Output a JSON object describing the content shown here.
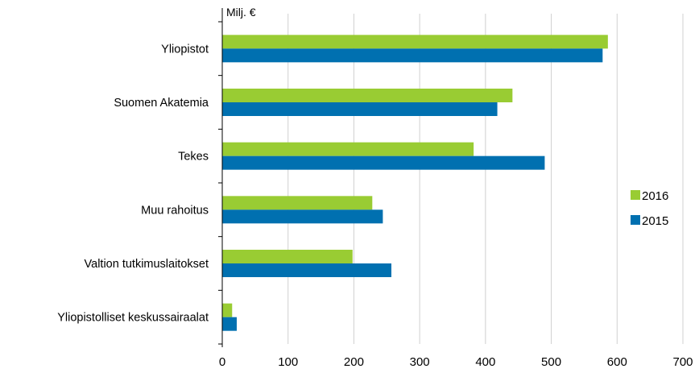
{
  "chart_data": {
    "type": "bar",
    "orientation": "horizontal",
    "unit_label": "Milj. €",
    "categories": [
      "Yliopistot",
      "Suomen Akatemia",
      "Tekes",
      "Muu rahoitus",
      "Valtion tutkimuslaitokset",
      "Yliopistolliset keskussairaalat"
    ],
    "series": [
      {
        "name": "2016",
        "color": "#99cc33",
        "values": [
          586,
          441,
          382,
          228,
          198,
          15
        ]
      },
      {
        "name": "2015",
        "color": "#0070b0",
        "values": [
          578,
          418,
          490,
          244,
          257,
          22
        ]
      }
    ],
    "xlim": [
      0,
      700
    ],
    "xticks": [
      0,
      100,
      200,
      300,
      400,
      500,
      600,
      700
    ],
    "grid": true,
    "legend_position": "right"
  }
}
